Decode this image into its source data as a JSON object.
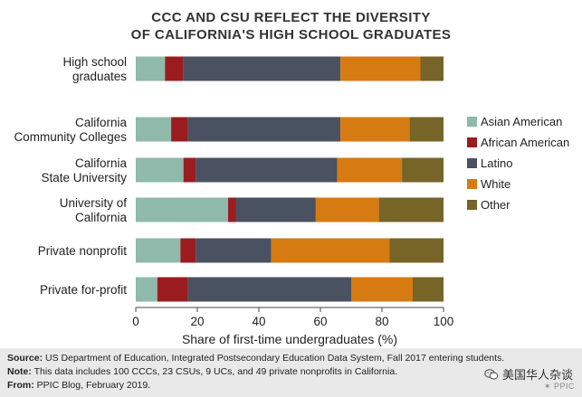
{
  "chart_data": {
    "type": "bar",
    "orientation": "horizontal",
    "stacked": true,
    "title": [
      "CCC AND CSU REFLECT THE DIVERSITY",
      "OF CALIFORNIA'S HIGH SCHOOL GRADUATES"
    ],
    "xlabel": "Share of first-time undergraduates (%)",
    "ylabel": "",
    "xlim": [
      0,
      100
    ],
    "xticks": [
      0,
      20,
      40,
      60,
      80,
      100
    ],
    "grid": false,
    "legend_position": "right",
    "categories": [
      [
        "High school",
        "graduates"
      ],
      [
        "California",
        "Community Colleges"
      ],
      [
        "California",
        "State University"
      ],
      [
        "University of",
        "California"
      ],
      [
        "Private nonprofit"
      ],
      [
        "Private for-profit"
      ]
    ],
    "series": [
      {
        "name": "Asian American",
        "color": "#8fb9aa",
        "values": [
          9.5,
          11.5,
          15.5,
          30.0,
          14.5,
          7.0
        ]
      },
      {
        "name": "African American",
        "color": "#9b1c1f",
        "values": [
          6.0,
          5.5,
          4.0,
          2.5,
          5.0,
          10.0
        ]
      },
      {
        "name": "Latino",
        "color": "#4a5160",
        "values": [
          51.0,
          49.5,
          46.0,
          26.0,
          24.5,
          53.0
        ]
      },
      {
        "name": "White",
        "color": "#d67a12",
        "values": [
          26.0,
          22.5,
          21.0,
          20.5,
          38.5,
          20.0
        ]
      },
      {
        "name": "Other",
        "color": "#776427",
        "values": [
          7.5,
          11.0,
          13.5,
          21.0,
          17.5,
          10.0
        ]
      }
    ]
  },
  "footer": {
    "source_label": "Source:",
    "source_text": "US Department of Education, Integrated Postsecondary Education Data System, Fall 2017 entering students.",
    "note_label": "Note:",
    "note_text": "This data includes 100 CCCs, 23 CSUs, 9 UCs, and 49 private nonprofits in California.",
    "from_label": "From:",
    "from_text": "PPIC Blog, February 2019."
  },
  "watermark": {
    "text": "美国华人杂谈",
    "icon": "wechat-icon"
  },
  "brand": {
    "text": "PPIC"
  }
}
